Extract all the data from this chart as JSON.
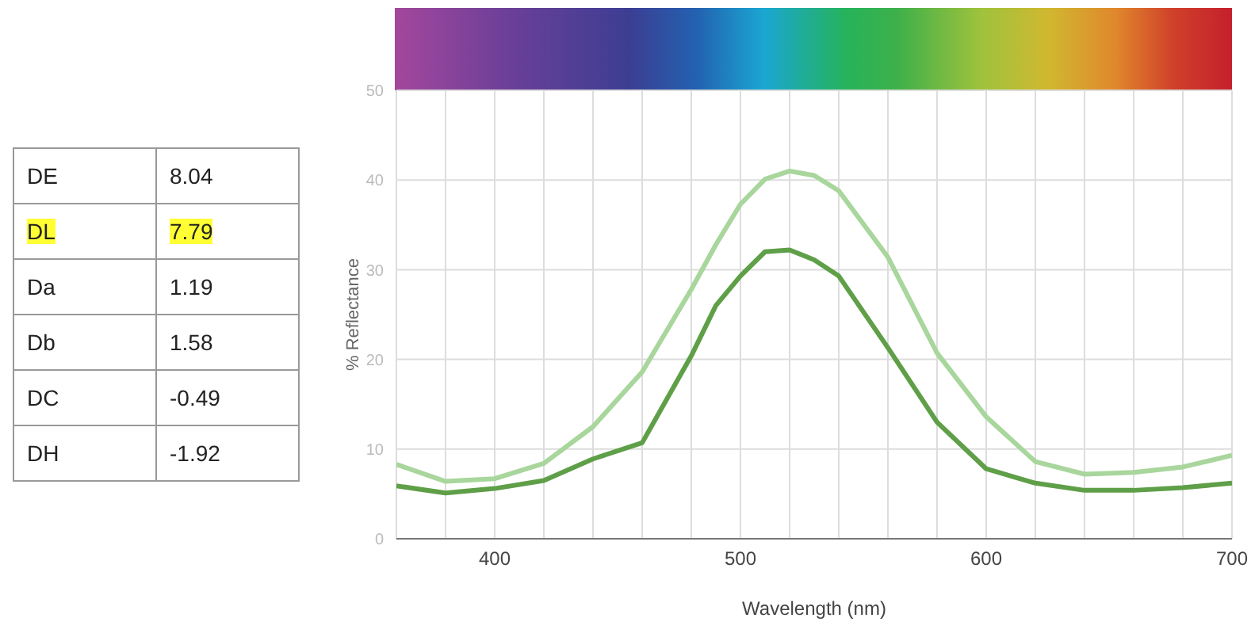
{
  "chart_data": [
    {
      "type": "other",
      "categories": [
        "DE",
        "DL",
        "Da",
        "Db",
        "DC",
        "DH"
      ],
      "values": [
        8.04,
        7.79,
        1.19,
        1.58,
        -0.49,
        -1.92
      ],
      "colors": [
        "#ffffff",
        "#ffff33",
        "#ffffff",
        "#ffffff",
        "#ffffff",
        "#ffffff"
      ],
      "data_labels": true
    },
    {
      "type": "line",
      "xlabel": "Wavelength (nm)",
      "ylabel": "% Reflectance",
      "x": [
        360,
        380,
        400,
        420,
        440,
        460,
        480,
        490,
        500,
        510,
        520,
        530,
        540,
        560,
        580,
        600,
        620,
        640,
        660,
        680,
        700
      ],
      "series": [
        {
          "color": "#a8d69c",
          "values": [
            8.3,
            6.4,
            6.7,
            8.4,
            12.5,
            18.6,
            27.8,
            32.8,
            37.3,
            40.1,
            41.0,
            40.5,
            38.8,
            31.4,
            20.7,
            13.6,
            8.6,
            7.2,
            7.4,
            8.0,
            9.3
          ]
        },
        {
          "color": "#5e9f48",
          "values": [
            5.9,
            5.1,
            5.6,
            6.5,
            8.9,
            10.7,
            20.4,
            26.0,
            29.3,
            32.0,
            32.2,
            31.1,
            29.3,
            21.3,
            13.0,
            7.8,
            6.2,
            5.4,
            5.4,
            5.7,
            6.2
          ]
        }
      ],
      "xlim": [
        360,
        700
      ],
      "xticks": [
        {
          "value": 360,
          "label": null
        },
        {
          "value": 380,
          "label": null
        },
        400,
        {
          "value": 420,
          "label": null
        },
        {
          "value": 440,
          "label": null
        },
        {
          "value": 460,
          "label": null
        },
        {
          "value": 480,
          "label": null
        },
        500,
        {
          "value": 520,
          "label": null
        },
        {
          "value": 540,
          "label": null
        },
        {
          "value": 560,
          "label": null
        },
        {
          "value": 580,
          "label": null
        },
        600,
        {
          "value": 620,
          "label": null
        },
        {
          "value": 640,
          "label": null
        },
        {
          "value": 660,
          "label": null
        },
        {
          "value": 680,
          "label": null
        },
        700
      ],
      "ylim": [
        0,
        50
      ],
      "yticks": [
        0,
        10,
        20,
        30,
        40,
        50
      ],
      "grid": true,
      "marker": "none",
      "line_style": "solid"
    }
  ]
}
